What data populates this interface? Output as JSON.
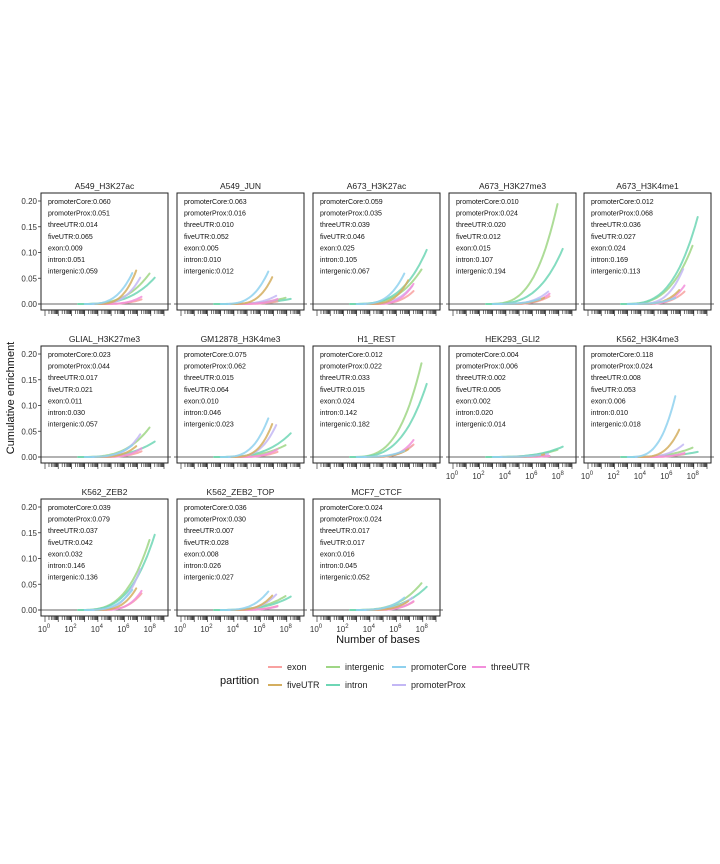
{
  "chart_data": {
    "type": "line",
    "xlabel": "Number of bases",
    "ylabel": "Cumulative enrichment",
    "x_scale": "log10",
    "x_ticks": [
      "10^0",
      "10^2",
      "10^4",
      "10^6",
      "10^8"
    ],
    "xlim": [
      1,
      1000000000
    ],
    "y_ticks": [
      "0.00",
      "0.05",
      "0.10",
      "0.15",
      "0.20"
    ],
    "ylim": [
      0,
      0.2
    ],
    "legend": {
      "title": "partition",
      "position": "bottom",
      "entries": [
        {
          "name": "exon",
          "color": "#F8A1A0"
        },
        {
          "name": "fiveUTR",
          "color": "#D4AE5F"
        },
        {
          "name": "intergenic",
          "color": "#9FD685"
        },
        {
          "name": "intron",
          "color": "#6ED6B5"
        },
        {
          "name": "promoterCore",
          "color": "#8FD1EE"
        },
        {
          "name": "promoterProx",
          "color": "#C3B7F5"
        },
        {
          "name": "threeUTR",
          "color": "#F28FDB"
        }
      ]
    },
    "panels": [
      {
        "title": "A549_H3K27ac",
        "values": {
          "promoterCore": 0.06,
          "promoterProx": 0.051,
          "threeUTR": 0.014,
          "fiveUTR": 0.065,
          "exon": 0.009,
          "intron": 0.051,
          "intergenic": 0.059
        },
        "labels": [
          "promoterCore:0.060",
          "promoterProx:0.051",
          "threeUTR:0.014",
          "fiveUTR:0.065",
          "exon:0.009",
          "intron:0.051",
          "intergenic:0.059"
        ]
      },
      {
        "title": "A549_JUN",
        "values": {
          "promoterCore": 0.063,
          "promoterProx": 0.016,
          "threeUTR": 0.01,
          "fiveUTR": 0.052,
          "exon": 0.005,
          "intron": 0.01,
          "intergenic": 0.012
        },
        "labels": [
          "promoterCore:0.063",
          "promoterProx:0.016",
          "threeUTR:0.010",
          "fiveUTR:0.052",
          "exon:0.005",
          "intron:0.010",
          "intergenic:0.012"
        ]
      },
      {
        "title": "A673_H3K27ac",
        "values": {
          "promoterCore": 0.059,
          "promoterProx": 0.035,
          "threeUTR": 0.039,
          "fiveUTR": 0.046,
          "exon": 0.025,
          "intron": 0.105,
          "intergenic": 0.067
        },
        "labels": [
          "promoterCore:0.059",
          "promoterProx:0.035",
          "threeUTR:0.039",
          "fiveUTR:0.046",
          "exon:0.025",
          "intron:0.105",
          "intergenic:0.067"
        ]
      },
      {
        "title": "A673_H3K27me3",
        "values": {
          "promoterCore": 0.01,
          "promoterProx": 0.024,
          "threeUTR": 0.02,
          "fiveUTR": 0.012,
          "exon": 0.015,
          "intron": 0.107,
          "intergenic": 0.194
        },
        "labels": [
          "promoterCore:0.010",
          "promoterProx:0.024",
          "threeUTR:0.020",
          "fiveUTR:0.012",
          "exon:0.015",
          "intron:0.107",
          "intergenic:0.194"
        ]
      },
      {
        "title": "A673_H3K4me1",
        "values": {
          "promoterCore": 0.012,
          "promoterProx": 0.068,
          "threeUTR": 0.036,
          "fiveUTR": 0.027,
          "exon": 0.024,
          "intron": 0.169,
          "intergenic": 0.113
        },
        "labels": [
          "promoterCore:0.012",
          "promoterProx:0.068",
          "threeUTR:0.036",
          "fiveUTR:0.027",
          "exon:0.024",
          "intron:0.169",
          "intergenic:0.113"
        ]
      },
      {
        "title": "GLIAL_H3K27me3",
        "values": {
          "promoterCore": 0.023,
          "promoterProx": 0.044,
          "threeUTR": 0.017,
          "fiveUTR": 0.021,
          "exon": 0.011,
          "intron": 0.03,
          "intergenic": 0.057
        },
        "labels": [
          "promoterCore:0.023",
          "promoterProx:0.044",
          "threeUTR:0.017",
          "fiveUTR:0.021",
          "exon:0.011",
          "intron:0.030",
          "intergenic:0.057"
        ]
      },
      {
        "title": "GM12878_H3K4me3",
        "values": {
          "promoterCore": 0.075,
          "promoterProx": 0.062,
          "threeUTR": 0.015,
          "fiveUTR": 0.064,
          "exon": 0.01,
          "intron": 0.046,
          "intergenic": 0.023
        },
        "labels": [
          "promoterCore:0.075",
          "promoterProx:0.062",
          "threeUTR:0.015",
          "fiveUTR:0.064",
          "exon:0.010",
          "intron:0.046",
          "intergenic:0.023"
        ]
      },
      {
        "title": "H1_REST",
        "values": {
          "promoterCore": 0.012,
          "promoterProx": 0.022,
          "threeUTR": 0.033,
          "fiveUTR": 0.015,
          "exon": 0.024,
          "intron": 0.142,
          "intergenic": 0.182
        },
        "labels": [
          "promoterCore:0.012",
          "promoterProx:0.022",
          "threeUTR:0.033",
          "fiveUTR:0.015",
          "exon:0.024",
          "intron:0.142",
          "intergenic:0.182"
        ]
      },
      {
        "title": "HEK293_GLI2",
        "values": {
          "promoterCore": 0.004,
          "promoterProx": 0.006,
          "threeUTR": 0.002,
          "fiveUTR": 0.005,
          "exon": 0.002,
          "intron": 0.02,
          "intergenic": 0.014
        },
        "labels": [
          "promoterCore:0.004",
          "promoterProx:0.006",
          "threeUTR:0.002",
          "fiveUTR:0.005",
          "exon:0.002",
          "intron:0.020",
          "intergenic:0.014"
        ]
      },
      {
        "title": "K562_H3K4me3",
        "values": {
          "promoterCore": 0.118,
          "promoterProx": 0.024,
          "threeUTR": 0.008,
          "fiveUTR": 0.053,
          "exon": 0.006,
          "intron": 0.01,
          "intergenic": 0.018
        },
        "labels": [
          "promoterCore:0.118",
          "promoterProx:0.024",
          "threeUTR:0.008",
          "fiveUTR:0.053",
          "exon:0.006",
          "intron:0.010",
          "intergenic:0.018"
        ]
      },
      {
        "title": "K562_ZEB2",
        "values": {
          "promoterCore": 0.039,
          "promoterProx": 0.079,
          "threeUTR": 0.037,
          "fiveUTR": 0.042,
          "exon": 0.032,
          "intron": 0.146,
          "intergenic": 0.136
        },
        "labels": [
          "promoterCore:0.039",
          "promoterProx:0.079",
          "threeUTR:0.037",
          "fiveUTR:0.042",
          "exon:0.032",
          "intron:0.146",
          "intergenic:0.136"
        ]
      },
      {
        "title": "K562_ZEB2_TOP",
        "values": {
          "promoterCore": 0.036,
          "promoterProx": 0.03,
          "threeUTR": 0.007,
          "fiveUTR": 0.028,
          "exon": 0.008,
          "intron": 0.026,
          "intergenic": 0.027
        },
        "labels": [
          "promoterCore:0.036",
          "promoterProx:0.030",
          "threeUTR:0.007",
          "fiveUTR:0.028",
          "exon:0.008",
          "intron:0.026",
          "intergenic:0.027"
        ]
      },
      {
        "title": "MCF7_CTCF",
        "values": {
          "promoterCore": 0.024,
          "promoterProx": 0.024,
          "threeUTR": 0.017,
          "fiveUTR": 0.017,
          "exon": 0.016,
          "intron": 0.045,
          "intergenic": 0.052
        },
        "labels": [
          "promoterCore:0.024",
          "promoterProx:0.024",
          "threeUTR:0.017",
          "fiveUTR:0.017",
          "exon:0.016",
          "intron:0.045",
          "intergenic:0.052"
        ]
      }
    ]
  }
}
